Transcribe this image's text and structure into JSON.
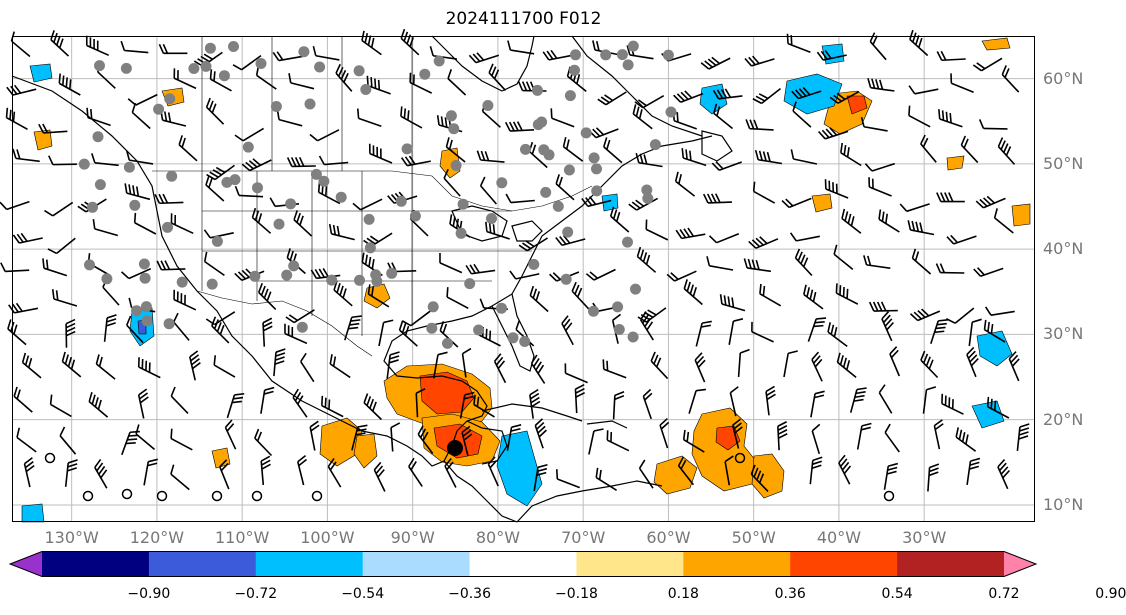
{
  "title": "2024111700 F012",
  "map": {
    "lat_labels": [
      {
        "text": "60°N",
        "lat": 60
      },
      {
        "text": "50°N",
        "lat": 50
      },
      {
        "text": "40°N",
        "lat": 40
      },
      {
        "text": "30°N",
        "lat": 30
      },
      {
        "text": "20°N",
        "lat": 20
      },
      {
        "text": "10°N",
        "lat": 10
      }
    ],
    "lon_labels": [
      {
        "text": "130°W",
        "lon": -130
      },
      {
        "text": "120°W",
        "lon": -120
      },
      {
        "text": "110°W",
        "lon": -110
      },
      {
        "text": "100°W",
        "lon": -100
      },
      {
        "text": "90°W",
        "lon": -90
      },
      {
        "text": "80°W",
        "lon": -80
      },
      {
        "text": "70°W",
        "lon": -70
      },
      {
        "text": "60°W",
        "lon": -60
      },
      {
        "text": "50°W",
        "lon": -50
      },
      {
        "text": "40°W",
        "lon": -40
      },
      {
        "text": "30°W",
        "lon": -30
      }
    ],
    "extent": {
      "lon_min": -137,
      "lon_max": -17,
      "lat_min": 8,
      "lat_max": 65
    }
  },
  "colorbar": {
    "colors": [
      "#9932cc",
      "#000080",
      "#3b5bdb",
      "#00bfff",
      "#aadcff",
      "#ffffff",
      "#ffe68a",
      "#ffa500",
      "#ff4500",
      "#b22222",
      "#ff82a8"
    ],
    "tick_labels": [
      "−0.90",
      "−0.72",
      "−0.54",
      "−0.36",
      "−0.18",
      "0.18",
      "0.36",
      "0.54",
      "0.72",
      "0.90"
    ]
  }
}
